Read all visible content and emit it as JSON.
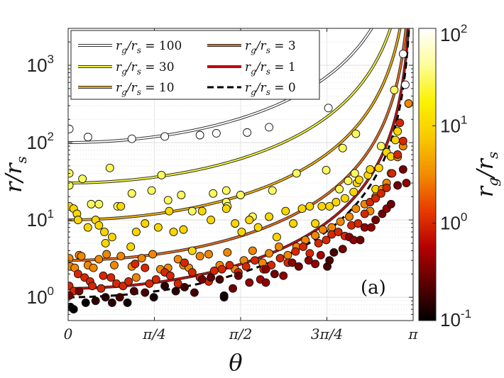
{
  "chart_data": {
    "type": "scatter",
    "title": "",
    "xlabel": "θ",
    "ylabel": "r/r_s",
    "xlim": [
      0,
      3.14159
    ],
    "ylim": [
      0.5,
      3000
    ],
    "yscale": "log",
    "grid": true,
    "legend_position": "top-left",
    "x_ticks": [
      {
        "value": 0,
        "label": "0"
      },
      {
        "value": 0.785398,
        "label": "π/4"
      },
      {
        "value": 1.570796,
        "label": "π/2"
      },
      {
        "value": 2.356194,
        "label": "3π/4"
      },
      {
        "value": 3.141593,
        "label": "π"
      }
    ],
    "y_ticks": [
      {
        "value": 1,
        "base": "10",
        "exp": "0"
      },
      {
        "value": 10,
        "base": "10",
        "exp": "1"
      },
      {
        "value": 100,
        "base": "10",
        "exp": "2"
      },
      {
        "value": 1000,
        "base": "10",
        "exp": "3"
      }
    ],
    "annotation": "(a)",
    "colorbar": {
      "label": "r_g/r_s",
      "scale": "log",
      "range": [
        0.1,
        100
      ],
      "ticks": [
        {
          "value": 0.1,
          "base": "10",
          "exp": "-1"
        },
        {
          "value": 1,
          "base": "10",
          "exp": "0"
        },
        {
          "value": 10,
          "base": "10",
          "exp": "1"
        },
        {
          "value": 100,
          "base": "10",
          "exp": "2"
        }
      ],
      "colormap": [
        "#000000",
        "#5a0000",
        "#b40000",
        "#e83a00",
        "#f28c00",
        "#f8c800",
        "#fbf200",
        "#fdfd9a",
        "#ffffff"
      ]
    },
    "series": [
      {
        "name": "r_g/r_s = 100",
        "rg": 100,
        "style": "double",
        "color": "#ffffff",
        "base": 100
      },
      {
        "name": "r_g/r_s = 30",
        "rg": 30,
        "style": "double",
        "color": "#f3f23a",
        "base": 30
      },
      {
        "name": "r_g/r_s = 10",
        "rg": 10,
        "style": "double",
        "color": "#f2b000",
        "base": 10
      },
      {
        "name": "r_g/r_s = 3",
        "rg": 3,
        "style": "double",
        "color": "#ee6a10",
        "base": 3
      },
      {
        "name": "r_g/r_s = 1",
        "rg": 1,
        "style": "double",
        "color": "#cc0a0a",
        "base": 1.3
      },
      {
        "name": "r_g/r_s = 0",
        "rg": 0,
        "style": "dashed",
        "color": "#000000",
        "base": 1.0
      }
    ],
    "legend_labels": [
      {
        "main": "r",
        "sub": "g",
        "slash": "/r",
        "sub2": "s",
        "eq": " = 100"
      },
      {
        "main": "r",
        "sub": "g",
        "slash": "/r",
        "sub2": "s",
        "eq": " = 30"
      },
      {
        "main": "r",
        "sub": "g",
        "slash": "/r",
        "sub2": "s",
        "eq": " = 10"
      },
      {
        "main": "r",
        "sub": "g",
        "slash": "/r",
        "sub2": "s",
        "eq": " = 3"
      },
      {
        "main": "r",
        "sub": "g",
        "slash": "/r",
        "sub2": "s",
        "eq": " = 1"
      },
      {
        "main": "r",
        "sub": "g",
        "slash": "/r",
        "sub2": "s",
        "eq": " = 0"
      }
    ],
    "points": [
      [
        0.01,
        150,
        100
      ],
      [
        0.18,
        118,
        100
      ],
      [
        0.58,
        112,
        100
      ],
      [
        0.88,
        120,
        100
      ],
      [
        1.35,
        132,
        100
      ],
      [
        1.2,
        125,
        100
      ],
      [
        1.63,
        135,
        100
      ],
      [
        1.83,
        158,
        100
      ],
      [
        2.37,
        280,
        100
      ],
      [
        3.05,
        1400,
        100
      ],
      [
        3.07,
        560,
        100
      ],
      [
        0.01,
        40,
        30
      ],
      [
        0.01,
        28,
        30
      ],
      [
        0.13,
        34,
        30
      ],
      [
        0.21,
        16,
        30
      ],
      [
        0.28,
        16,
        30
      ],
      [
        0.38,
        47,
        30
      ],
      [
        0.45,
        15,
        30
      ],
      [
        0.58,
        22,
        30
      ],
      [
        0.76,
        24,
        30
      ],
      [
        0.85,
        38,
        30
      ],
      [
        0.91,
        18,
        30
      ],
      [
        1.03,
        21,
        30
      ],
      [
        1.13,
        13,
        30
      ],
      [
        1.32,
        22,
        30
      ],
      [
        1.44,
        24,
        30
      ],
      [
        1.44,
        17,
        30
      ],
      [
        1.45,
        15,
        30
      ],
      [
        1.57,
        21,
        30
      ],
      [
        1.68,
        11,
        30
      ],
      [
        1.86,
        24,
        30
      ],
      [
        2.08,
        40,
        30
      ],
      [
        2.35,
        44,
        30
      ],
      [
        2.47,
        25,
        30
      ],
      [
        2.5,
        85,
        30
      ],
      [
        2.55,
        32,
        30
      ],
      [
        2.62,
        130,
        30
      ],
      [
        2.61,
        40,
        30
      ],
      [
        2.85,
        90,
        30
      ],
      [
        2.97,
        480,
        30
      ],
      [
        0.01,
        15,
        10
      ],
      [
        0.05,
        14,
        10
      ],
      [
        0.08,
        12,
        10
      ],
      [
        0.09,
        10,
        10
      ],
      [
        0.18,
        8,
        10
      ],
      [
        0.25,
        10,
        10
      ],
      [
        0.28,
        8.5,
        10
      ],
      [
        0.33,
        7,
        10
      ],
      [
        0.34,
        5,
        10
      ],
      [
        0.4,
        6,
        10
      ],
      [
        0.48,
        15,
        10
      ],
      [
        0.57,
        4.5,
        10
      ],
      [
        0.62,
        7,
        10
      ],
      [
        0.7,
        9,
        10
      ],
      [
        0.82,
        8,
        10
      ],
      [
        0.92,
        13,
        10
      ],
      [
        0.96,
        7,
        10
      ],
      [
        1.05,
        7.5,
        10
      ],
      [
        1.13,
        4,
        10
      ],
      [
        1.22,
        13,
        10
      ],
      [
        1.3,
        10,
        10
      ],
      [
        1.44,
        14,
        10
      ],
      [
        1.52,
        9,
        10
      ],
      [
        1.58,
        7,
        10
      ],
      [
        1.65,
        10,
        10
      ],
      [
        1.73,
        8,
        10
      ],
      [
        1.83,
        11,
        10
      ],
      [
        1.9,
        6,
        10
      ],
      [
        1.98,
        13,
        10
      ],
      [
        2.05,
        9,
        10
      ],
      [
        2.13,
        14,
        10
      ],
      [
        2.2,
        15,
        10
      ],
      [
        2.25,
        9,
        10
      ],
      [
        2.31,
        15,
        10
      ],
      [
        2.38,
        15,
        10
      ],
      [
        2.44,
        17,
        10
      ],
      [
        2.52,
        19,
        10
      ],
      [
        2.6,
        23,
        10
      ],
      [
        2.63,
        30,
        10
      ],
      [
        2.65,
        33,
        10
      ],
      [
        2.73,
        38,
        10
      ],
      [
        2.75,
        45,
        10
      ],
      [
        2.8,
        25,
        10
      ],
      [
        2.83,
        47,
        10
      ],
      [
        2.9,
        75,
        10
      ],
      [
        2.94,
        66,
        10
      ],
      [
        2.98,
        108,
        10
      ],
      [
        3.0,
        140,
        10
      ],
      [
        0.01,
        3.2,
        3
      ],
      [
        0.02,
        2.5,
        3
      ],
      [
        0.06,
        2.4,
        3
      ],
      [
        0.1,
        3.5,
        3
      ],
      [
        0.12,
        3.4,
        3
      ],
      [
        0.18,
        2.6,
        3
      ],
      [
        0.23,
        2.4,
        3
      ],
      [
        0.28,
        3.1,
        3
      ],
      [
        0.35,
        3.6,
        3
      ],
      [
        0.42,
        2.6,
        3
      ],
      [
        0.48,
        3.4,
        3
      ],
      [
        0.58,
        2.5,
        3
      ],
      [
        0.62,
        1.8,
        3
      ],
      [
        0.67,
        3.2,
        3
      ],
      [
        0.77,
        3.6,
        3
      ],
      [
        0.84,
        2.3,
        3
      ],
      [
        0.91,
        2.4,
        3
      ],
      [
        1.0,
        3.1,
        3
      ],
      [
        1.05,
        2.6,
        3
      ],
      [
        1.1,
        2.4,
        3
      ],
      [
        1.2,
        3.4,
        3
      ],
      [
        1.28,
        3.6,
        3
      ],
      [
        1.38,
        2.6,
        3
      ],
      [
        1.45,
        3.8,
        3
      ],
      [
        1.52,
        2.3,
        3
      ],
      [
        1.6,
        3.0,
        3
      ],
      [
        1.68,
        4.0,
        3
      ],
      [
        1.77,
        2.8,
        3
      ],
      [
        1.83,
        3.7,
        3
      ],
      [
        1.92,
        4.5,
        3
      ],
      [
        2.0,
        3.5,
        3
      ],
      [
        2.08,
        4.5,
        3
      ],
      [
        2.16,
        5.5,
        3
      ],
      [
        2.25,
        6.3,
        3
      ],
      [
        2.32,
        7.5,
        3
      ],
      [
        2.4,
        8.0,
        3
      ],
      [
        2.48,
        9.5,
        3
      ],
      [
        2.56,
        11,
        3
      ],
      [
        2.62,
        14,
        3
      ],
      [
        2.7,
        16,
        3
      ],
      [
        2.75,
        13,
        3
      ],
      [
        2.8,
        20,
        3
      ],
      [
        2.86,
        25,
        3
      ],
      [
        2.9,
        30,
        3
      ],
      [
        2.94,
        40,
        3
      ],
      [
        3.0,
        65,
        3
      ],
      [
        3.05,
        90,
        3
      ],
      [
        3.1,
        320,
        3
      ],
      [
        0.01,
        1.4,
        1
      ],
      [
        0.05,
        1.2,
        1
      ],
      [
        0.09,
        2.0,
        1
      ],
      [
        0.15,
        1.8,
        1
      ],
      [
        0.2,
        1.6,
        1
      ],
      [
        0.22,
        1.4,
        1
      ],
      [
        0.3,
        1.3,
        1
      ],
      [
        0.32,
        1.9,
        1
      ],
      [
        0.39,
        1.8,
        1
      ],
      [
        0.44,
        1.5,
        1
      ],
      [
        0.5,
        1.4,
        1
      ],
      [
        0.55,
        1.6,
        1
      ],
      [
        0.61,
        2.7,
        1
      ],
      [
        0.7,
        2.4,
        1
      ],
      [
        0.74,
        1.5,
        1
      ],
      [
        0.8,
        1.7,
        1
      ],
      [
        0.88,
        2.1,
        1
      ],
      [
        0.93,
        1.9,
        1
      ],
      [
        1.0,
        1.5,
        1
      ],
      [
        1.06,
        2.8,
        1
      ],
      [
        1.13,
        2.1,
        1
      ],
      [
        1.2,
        1.8,
        1
      ],
      [
        1.28,
        1.6,
        1
      ],
      [
        1.33,
        2.2,
        1
      ],
      [
        1.4,
        2.3,
        1
      ],
      [
        1.47,
        2.6,
        1
      ],
      [
        1.55,
        2.1,
        1
      ],
      [
        1.62,
        2.5,
        1
      ],
      [
        1.7,
        3.0,
        1
      ],
      [
        1.78,
        2.3,
        1
      ],
      [
        1.85,
        2.6,
        1
      ],
      [
        1.93,
        3.2,
        1
      ],
      [
        2.0,
        2.8,
        1
      ],
      [
        2.07,
        3.9,
        1
      ],
      [
        2.14,
        4.5,
        1
      ],
      [
        2.2,
        3.7,
        1
      ],
      [
        2.28,
        5.0,
        1
      ],
      [
        2.35,
        5.5,
        1
      ],
      [
        2.4,
        6.5,
        1
      ],
      [
        2.46,
        7.0,
        1
      ],
      [
        2.52,
        6.2,
        1
      ],
      [
        2.58,
        8.5,
        1
      ],
      [
        2.64,
        9.0,
        1
      ],
      [
        2.7,
        12,
        1
      ],
      [
        2.75,
        17,
        1
      ],
      [
        2.8,
        19,
        1
      ],
      [
        2.85,
        22,
        1
      ],
      [
        2.9,
        26,
        1
      ],
      [
        2.95,
        40,
        1
      ],
      [
        3.0,
        70,
        1
      ],
      [
        3.02,
        180,
        1
      ],
      [
        3.05,
        105,
        1
      ],
      [
        0.01,
        1.05,
        0.3
      ],
      [
        0.02,
        0.75,
        0.1
      ],
      [
        0.05,
        0.7,
        0.1
      ],
      [
        0.1,
        1.2,
        0.3
      ],
      [
        0.16,
        0.85,
        0.1
      ],
      [
        0.25,
        0.9,
        0.15
      ],
      [
        0.34,
        1.0,
        0.15
      ],
      [
        0.4,
        0.85,
        0.15
      ],
      [
        0.47,
        1.0,
        0.2
      ],
      [
        0.54,
        0.85,
        0.12
      ],
      [
        0.6,
        1.2,
        0.2
      ],
      [
        0.7,
        1.15,
        0.2
      ],
      [
        0.78,
        1.0,
        0.12
      ],
      [
        0.88,
        1.4,
        0.15
      ],
      [
        0.98,
        1.2,
        0.15
      ],
      [
        1.06,
        1.35,
        0.18
      ],
      [
        1.15,
        1.15,
        0.2
      ],
      [
        1.22,
        1.7,
        0.3
      ],
      [
        1.3,
        1.8,
        0.25
      ],
      [
        1.38,
        1.7,
        0.2
      ],
      [
        1.42,
        1.05,
        0.12
      ],
      [
        1.5,
        1.3,
        0.3
      ],
      [
        1.55,
        1.9,
        0.3
      ],
      [
        1.65,
        1.55,
        0.4
      ],
      [
        1.75,
        1.7,
        0.5
      ],
      [
        1.8,
        1.55,
        0.4
      ],
      [
        1.88,
        2.0,
        0.3
      ],
      [
        1.96,
        1.9,
        0.4
      ],
      [
        2.04,
        2.8,
        0.4
      ],
      [
        2.1,
        2.5,
        0.3
      ],
      [
        2.19,
        3.0,
        0.4
      ],
      [
        2.25,
        2.7,
        0.4
      ],
      [
        2.3,
        3.5,
        0.5
      ],
      [
        2.36,
        2.5,
        0.2
      ],
      [
        2.42,
        3.8,
        0.2
      ],
      [
        2.5,
        4.2,
        0.3
      ],
      [
        2.56,
        6.0,
        0.4
      ],
      [
        2.6,
        5.5,
        0.4
      ],
      [
        2.66,
        5.5,
        0.3
      ],
      [
        2.7,
        8.0,
        0.4
      ],
      [
        2.76,
        8.0,
        0.4
      ],
      [
        2.8,
        10,
        0.3
      ],
      [
        2.86,
        12,
        0.3
      ],
      [
        2.9,
        14,
        0.4
      ],
      [
        2.94,
        16,
        0.3
      ],
      [
        3.0,
        28,
        0.3
      ],
      [
        3.05,
        45,
        0.3
      ],
      [
        3.08,
        30,
        0.4
      ],
      [
        2.38,
        3.0,
        0.2
      ],
      [
        1.8,
        2.3,
        0.4
      ],
      [
        1.42,
        1.0,
        0.12
      ]
    ]
  }
}
